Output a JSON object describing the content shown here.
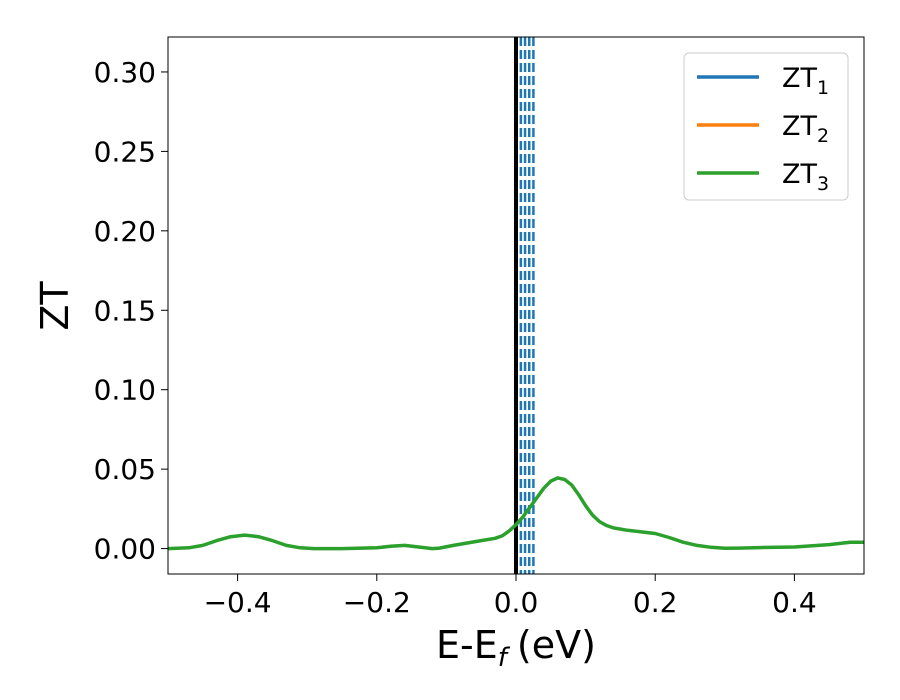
{
  "chart_data": {
    "type": "line",
    "xlabel": "E-E",
    "xlabel_sub": "f",
    "xlabel_unit": "(eV)",
    "ylabel": "ZT",
    "xlim": [
      -0.5,
      0.5
    ],
    "ylim": [
      -0.016,
      0.322
    ],
    "xticks": [
      -0.4,
      -0.2,
      0.0,
      0.2,
      0.4
    ],
    "xtick_labels": [
      "−0.4",
      "−0.2",
      "0.0",
      "0.2",
      "0.4"
    ],
    "yticks": [
      0.0,
      0.05,
      0.1,
      0.15,
      0.2,
      0.25,
      0.3
    ],
    "ytick_labels": [
      "0.00",
      "0.05",
      "0.10",
      "0.15",
      "0.20",
      "0.25",
      "0.30"
    ],
    "grid": false,
    "legend_position": "top-right",
    "fermi_line_x": 0.0,
    "dashed_lines_x": [
      0.007,
      0.013,
      0.019,
      0.025
    ],
    "series": [
      {
        "name": "ZT",
        "subscript": "1",
        "color": "#1f77b4",
        "x": [],
        "y": []
      },
      {
        "name": "ZT",
        "subscript": "2",
        "color": "#ff7f0e",
        "x": [],
        "y": []
      },
      {
        "name": "ZT",
        "subscript": "3",
        "color": "#2ca02c",
        "x": [
          -0.5,
          -0.47,
          -0.45,
          -0.43,
          -0.41,
          -0.39,
          -0.37,
          -0.35,
          -0.33,
          -0.31,
          -0.29,
          -0.25,
          -0.2,
          -0.18,
          -0.16,
          -0.14,
          -0.12,
          -0.11,
          -0.09,
          -0.07,
          -0.05,
          -0.03,
          -0.02,
          -0.01,
          0.0,
          0.01,
          0.02,
          0.03,
          0.04,
          0.05,
          0.06,
          0.07,
          0.08,
          0.09,
          0.1,
          0.11,
          0.12,
          0.13,
          0.14,
          0.16,
          0.18,
          0.2,
          0.22,
          0.24,
          0.26,
          0.28,
          0.3,
          0.32,
          0.35,
          0.4,
          0.45,
          0.48,
          0.5
        ],
        "y": [
          0.0,
          0.0005,
          0.002,
          0.005,
          0.0075,
          0.0085,
          0.0075,
          0.005,
          0.002,
          0.0005,
          0.0,
          0.0,
          0.0005,
          0.0015,
          0.002,
          0.001,
          0.0,
          0.0003,
          0.002,
          0.0035,
          0.005,
          0.0065,
          0.008,
          0.011,
          0.015,
          0.02,
          0.026,
          0.032,
          0.038,
          0.0425,
          0.0445,
          0.0435,
          0.04,
          0.034,
          0.027,
          0.021,
          0.017,
          0.0145,
          0.013,
          0.0115,
          0.0105,
          0.0095,
          0.007,
          0.004,
          0.002,
          0.0008,
          0.0002,
          0.0003,
          0.0006,
          0.001,
          0.0025,
          0.004,
          0.004
        ]
      }
    ]
  }
}
